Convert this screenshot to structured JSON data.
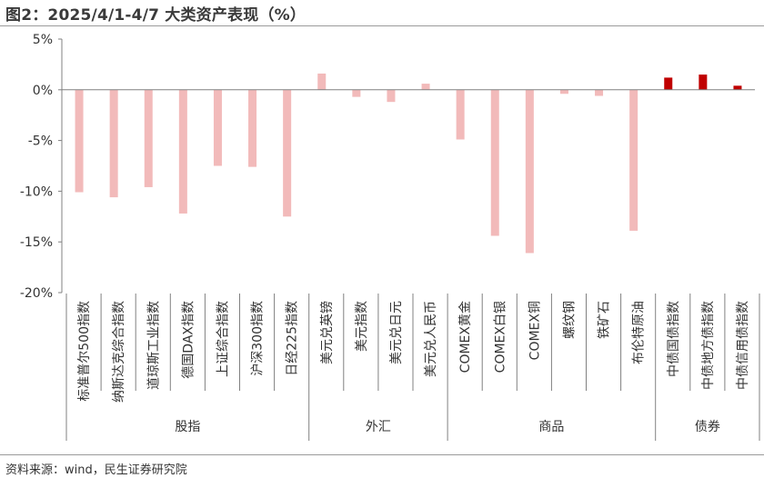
{
  "title": "图2：2025/4/1-4/7 大类资产表现（%）",
  "source": "资料来源：wind，民生证券研究院",
  "colors": {
    "bar_default": "#f2baba",
    "bar_highlight": "#c00000",
    "axis": "#808080",
    "text": "#333333"
  },
  "chart_data": {
    "type": "bar",
    "ylim": [
      -20,
      5
    ],
    "yticks": [
      5,
      0,
      -5,
      -10,
      -15,
      -20
    ],
    "ytick_labels": [
      "5%",
      "0%",
      "-5%",
      "-10%",
      "-15%",
      "-20%"
    ],
    "grid": false,
    "categories": [
      "标准普尔500指数",
      "纳斯达克综合指数",
      "道琼斯工业指数",
      "德国DAX指数",
      "上证综合指数",
      "沪深300指数",
      "日经225指数",
      "美元兑英镑",
      "美元指数",
      "美元兑日元",
      "美元兑人民币",
      "COMEX黄金",
      "COMEX白银",
      "COMEX铜",
      "螺纹钢",
      "铁矿石",
      "布伦特原油",
      "中债国债指数",
      "中债地方债指数",
      "中债信用债指数"
    ],
    "values": [
      -10.1,
      -10.6,
      -9.6,
      -12.2,
      -7.5,
      -7.6,
      -12.5,
      1.6,
      -0.7,
      -1.2,
      0.6,
      -4.9,
      -14.4,
      -16.1,
      -0.4,
      -0.6,
      -13.9,
      1.2,
      1.5,
      0.4
    ],
    "highlight": [
      false,
      false,
      false,
      false,
      false,
      false,
      false,
      false,
      false,
      false,
      false,
      false,
      false,
      false,
      false,
      false,
      false,
      true,
      true,
      true
    ],
    "groups": [
      {
        "label": "股指",
        "start": 0,
        "end": 6
      },
      {
        "label": "外汇",
        "start": 7,
        "end": 10
      },
      {
        "label": "商品",
        "start": 11,
        "end": 16
      },
      {
        "label": "债券",
        "start": 17,
        "end": 19
      }
    ]
  }
}
